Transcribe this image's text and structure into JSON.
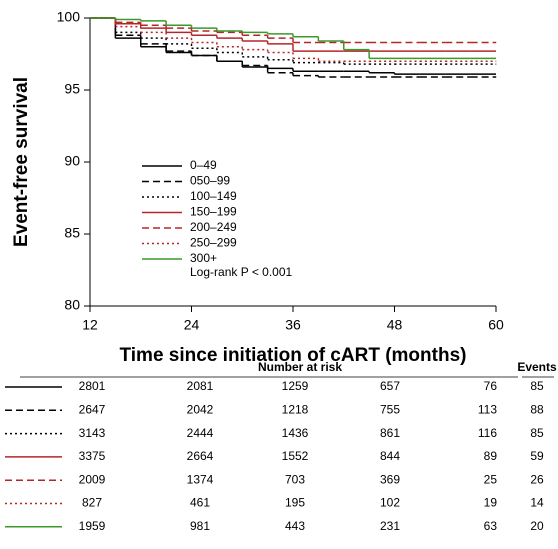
{
  "chart_data": {
    "type": "step",
    "x_label": "Time since initiation of cART (months)",
    "y_label": "Event-free survival",
    "annotation": "Log-rank P < 0.001",
    "x": [
      12,
      15,
      18,
      21,
      24,
      27,
      30,
      33,
      36,
      39,
      42,
      45,
      48,
      51,
      54,
      57,
      60
    ],
    "xlim": [
      12,
      60
    ],
    "xticks": [
      12,
      24,
      36,
      48,
      60
    ],
    "ylim": [
      80,
      100
    ],
    "yticks": [
      80,
      85,
      90,
      95,
      100
    ],
    "series": [
      {
        "name": "0–49",
        "color": "#000000",
        "dash": "solid",
        "values": [
          100,
          98.6,
          98.0,
          97.6,
          97.4,
          97.0,
          96.6,
          96.5,
          96.3,
          96.3,
          96.3,
          96.2,
          96.1,
          96.1,
          96.1,
          96.1,
          96.1
        ]
      },
      {
        "name": "050–99",
        "color": "#000000",
        "dash": "dashed",
        "values": [
          100,
          98.8,
          98.2,
          97.7,
          97.4,
          97.0,
          96.7,
          96.2,
          96.0,
          95.9,
          95.9,
          95.9,
          95.9,
          95.9,
          95.9,
          95.9,
          95.9
        ]
      },
      {
        "name": "100–149",
        "color": "#000000",
        "dash": "dotted",
        "values": [
          100,
          99.0,
          98.6,
          98.2,
          97.9,
          97.6,
          97.3,
          97.1,
          96.9,
          96.9,
          96.8,
          96.8,
          96.8,
          96.8,
          96.8,
          96.8,
          96.8
        ]
      },
      {
        "name": "150–199",
        "color": "#b5262a",
        "dash": "solid",
        "values": [
          100,
          99.6,
          99.3,
          99.0,
          98.8,
          98.6,
          98.4,
          98.2,
          97.7,
          97.7,
          97.7,
          97.7,
          97.7,
          97.7,
          97.7,
          97.7,
          97.7
        ]
      },
      {
        "name": "200–249",
        "color": "#b5262a",
        "dash": "dashed",
        "values": [
          100,
          99.7,
          99.5,
          99.3,
          99.1,
          99.0,
          98.8,
          98.6,
          98.3,
          98.3,
          98.3,
          98.3,
          98.3,
          98.3,
          98.3,
          98.3,
          98.3
        ]
      },
      {
        "name": "250–299",
        "color": "#b5262a",
        "dash": "dotted",
        "values": [
          100,
          99.4,
          99.0,
          98.6,
          98.3,
          98.0,
          97.8,
          97.6,
          97.2,
          97.0,
          97.0,
          97.0,
          97.0,
          97.0,
          97.0,
          97.0,
          97.0
        ]
      },
      {
        "name": "300+",
        "color": "#3a9a2a",
        "dash": "solid",
        "values": [
          100,
          99.9,
          99.8,
          99.5,
          99.3,
          99.1,
          99.0,
          98.9,
          98.7,
          98.4,
          97.8,
          97.2,
          97.2,
          97.2,
          97.2,
          97.2,
          97.2
        ]
      }
    ]
  },
  "risk_table": {
    "title": "Number at risk",
    "events_title": "Events",
    "rows": [
      [
        2801,
        2081,
        1259,
        657,
        76
      ],
      [
        2647,
        2042,
        1218,
        755,
        113
      ],
      [
        3143,
        2444,
        1436,
        861,
        116
      ],
      [
        3375,
        2664,
        1552,
        844,
        89
      ],
      [
        2009,
        1374,
        703,
        369,
        25
      ],
      [
        827,
        461,
        195,
        102,
        19
      ],
      [
        1959,
        981,
        443,
        231,
        63
      ]
    ],
    "events": [
      85,
      88,
      85,
      59,
      26,
      14,
      20
    ]
  }
}
